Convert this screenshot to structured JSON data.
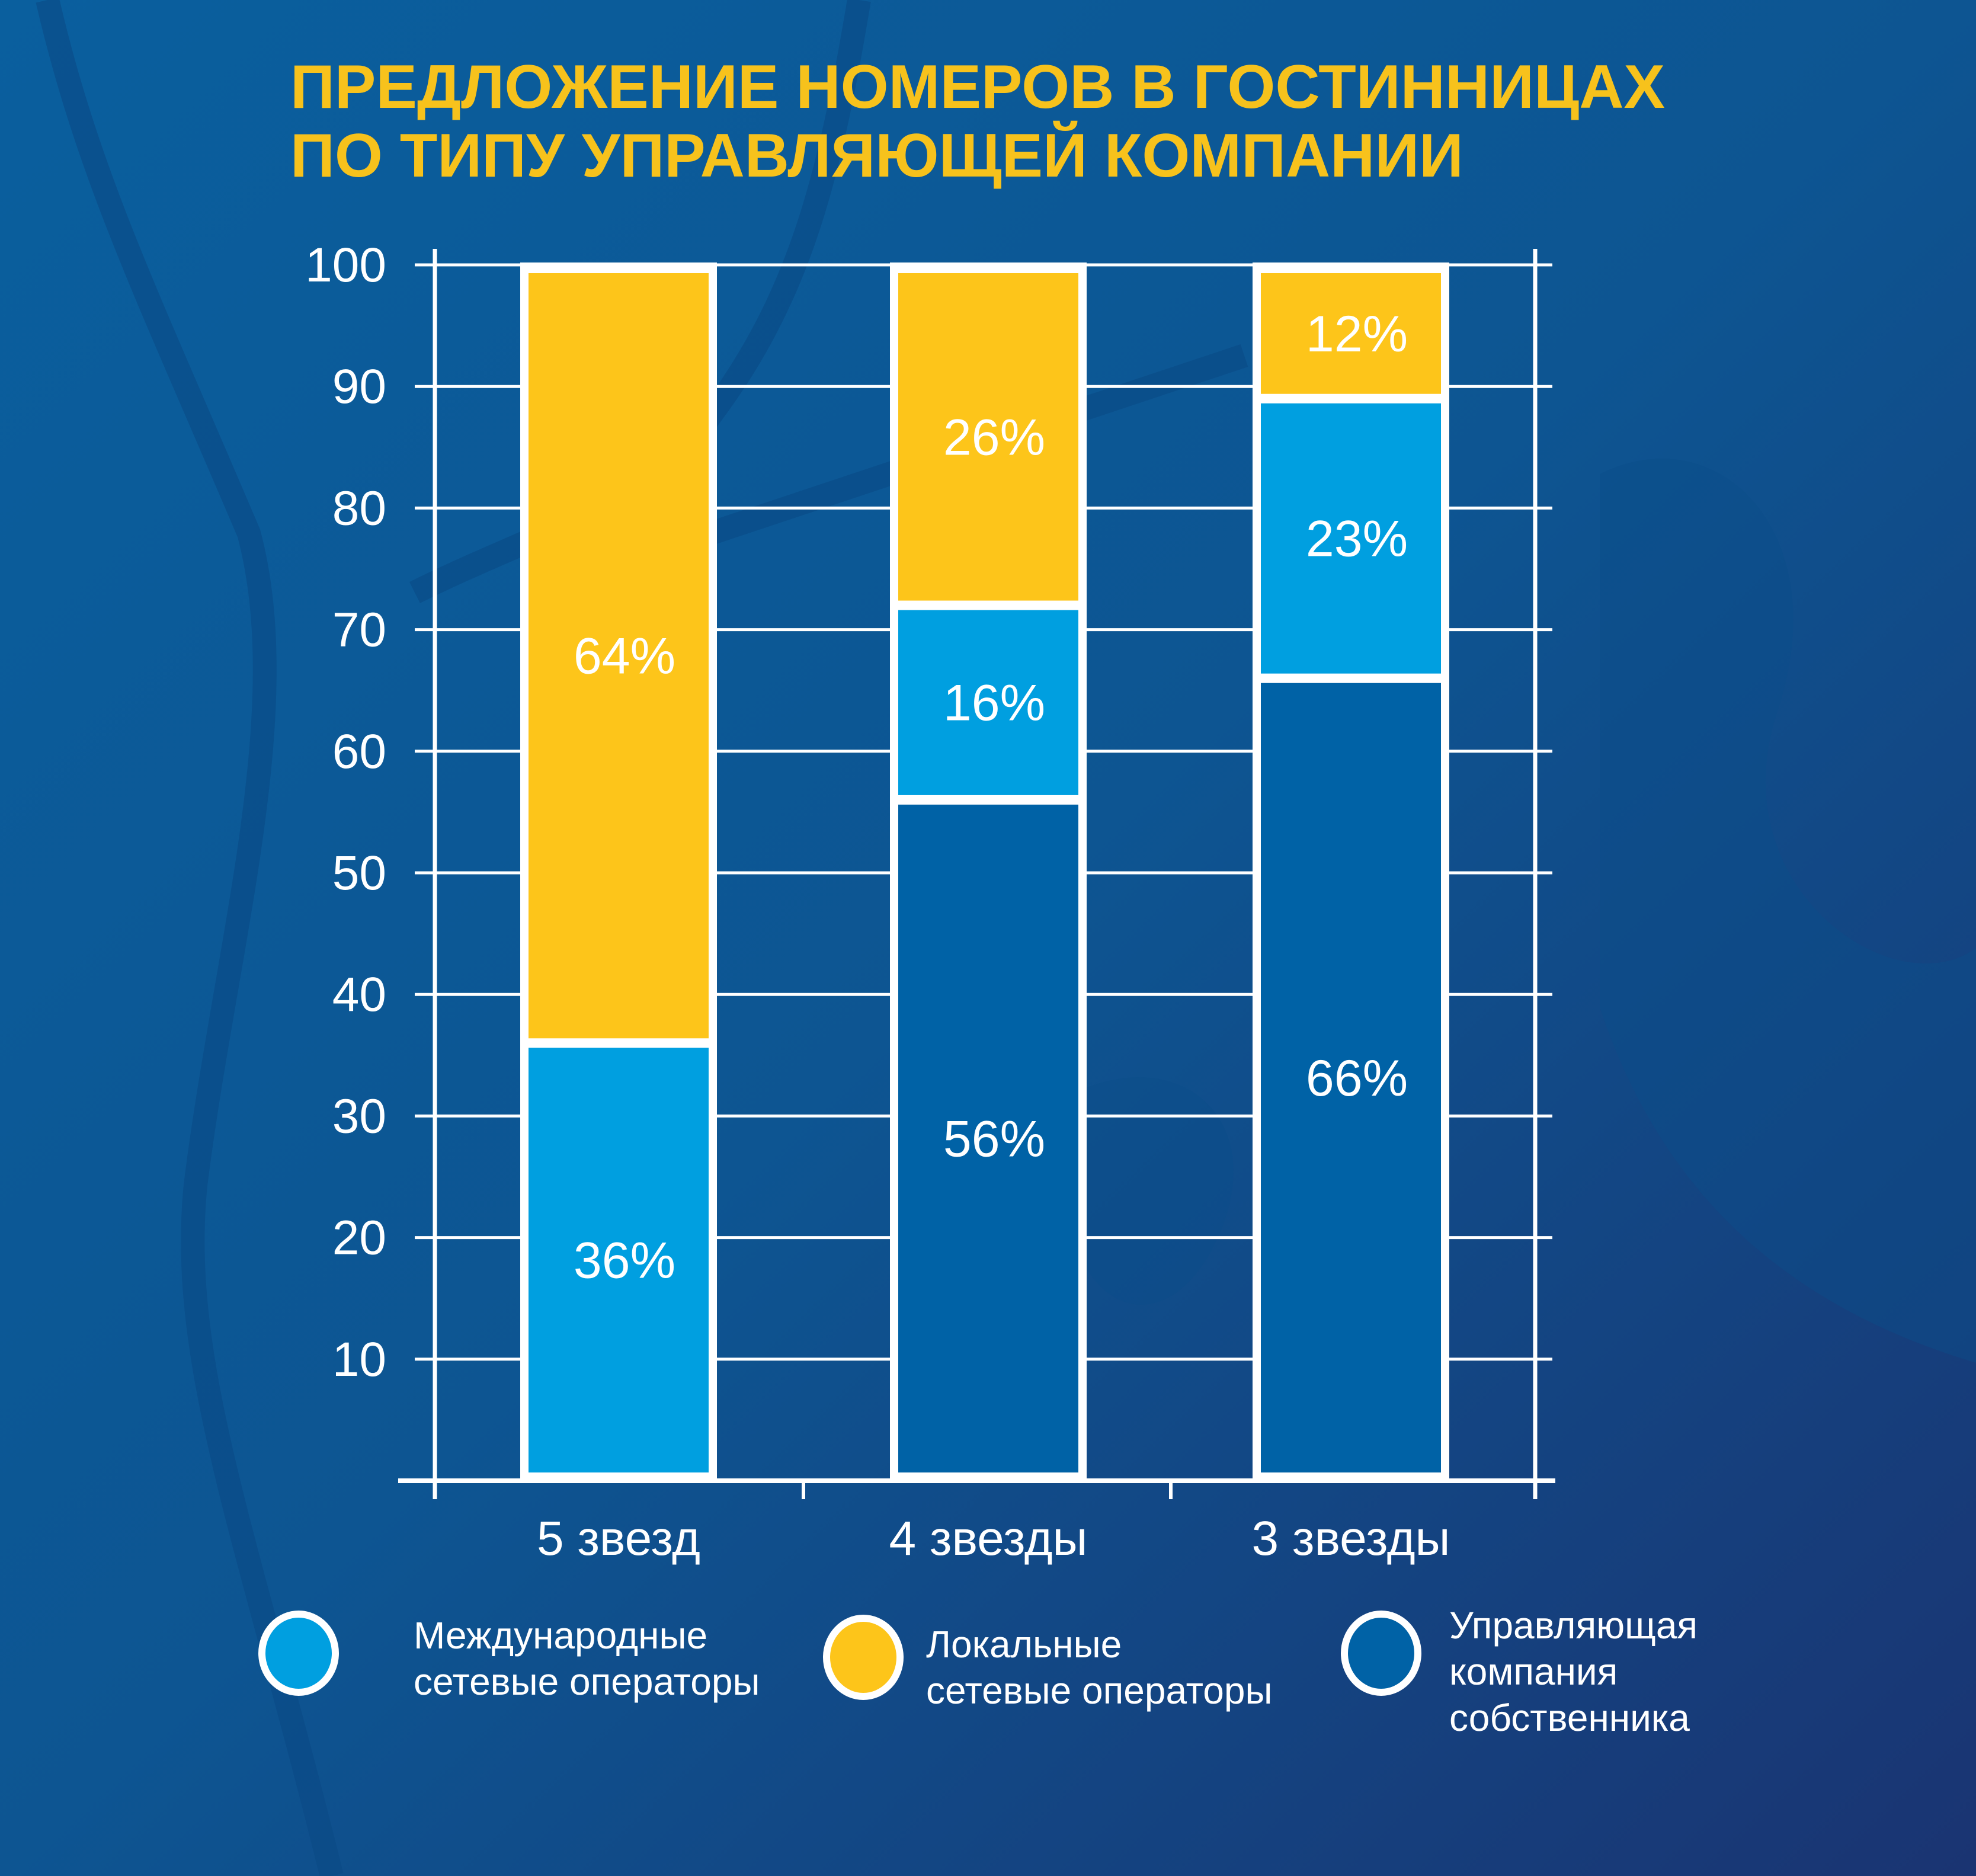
{
  "title_lines": [
    "ПРЕДЛОЖЕНИЕ НОМЕРОВ В ГОСТИННИЦАХ",
    "ПО ТИПУ УПРАВЛЯЮЩЕЙ КОМПАНИИ"
  ],
  "colors": {
    "title": "#F7C21C",
    "international": "#009FE0",
    "local": "#FDC51A",
    "owner": "#0062A6",
    "grid": "#FFFFFF",
    "text": "#FFFFFF"
  },
  "chart_data": {
    "type": "bar",
    "stacked": true,
    "title": "ПРЕДЛОЖЕНИЕ НОМЕРОВ В ГОСТИННИЦАХ ПО ТИПУ УПРАВЛЯЮЩЕЙ КОМПАНИИ",
    "categories": [
      "5 звезд",
      "4 звезды",
      "3 звезды"
    ],
    "series": [
      {
        "name": "Управляющая компания собственника",
        "key": "owner",
        "values": [
          0,
          56,
          66
        ],
        "labels": [
          "",
          "56%",
          "66%"
        ]
      },
      {
        "name": "Международные сетевые операторы",
        "key": "international",
        "values": [
          36,
          16,
          23
        ],
        "labels": [
          "36%",
          "16%",
          "23%"
        ]
      },
      {
        "name": "Локальные сетевые операторы",
        "key": "local",
        "values": [
          64,
          26,
          12
        ],
        "labels": [
          "64%",
          "26%",
          "12%"
        ]
      }
    ],
    "yticks": [
      10,
      20,
      30,
      40,
      50,
      60,
      70,
      80,
      90,
      100
    ],
    "ylim": [
      0,
      100
    ],
    "xlabel": "",
    "ylabel": "",
    "grid": true,
    "legend_position": "bottom"
  },
  "legend": [
    {
      "key": "international",
      "lines": [
        "Международные",
        "сетевые операторы"
      ]
    },
    {
      "key": "local",
      "lines": [
        "Локальные",
        "сетевые операторы"
      ]
    },
    {
      "key": "owner",
      "lines": [
        "Управляющая",
        "компания",
        "собственника"
      ]
    }
  ]
}
